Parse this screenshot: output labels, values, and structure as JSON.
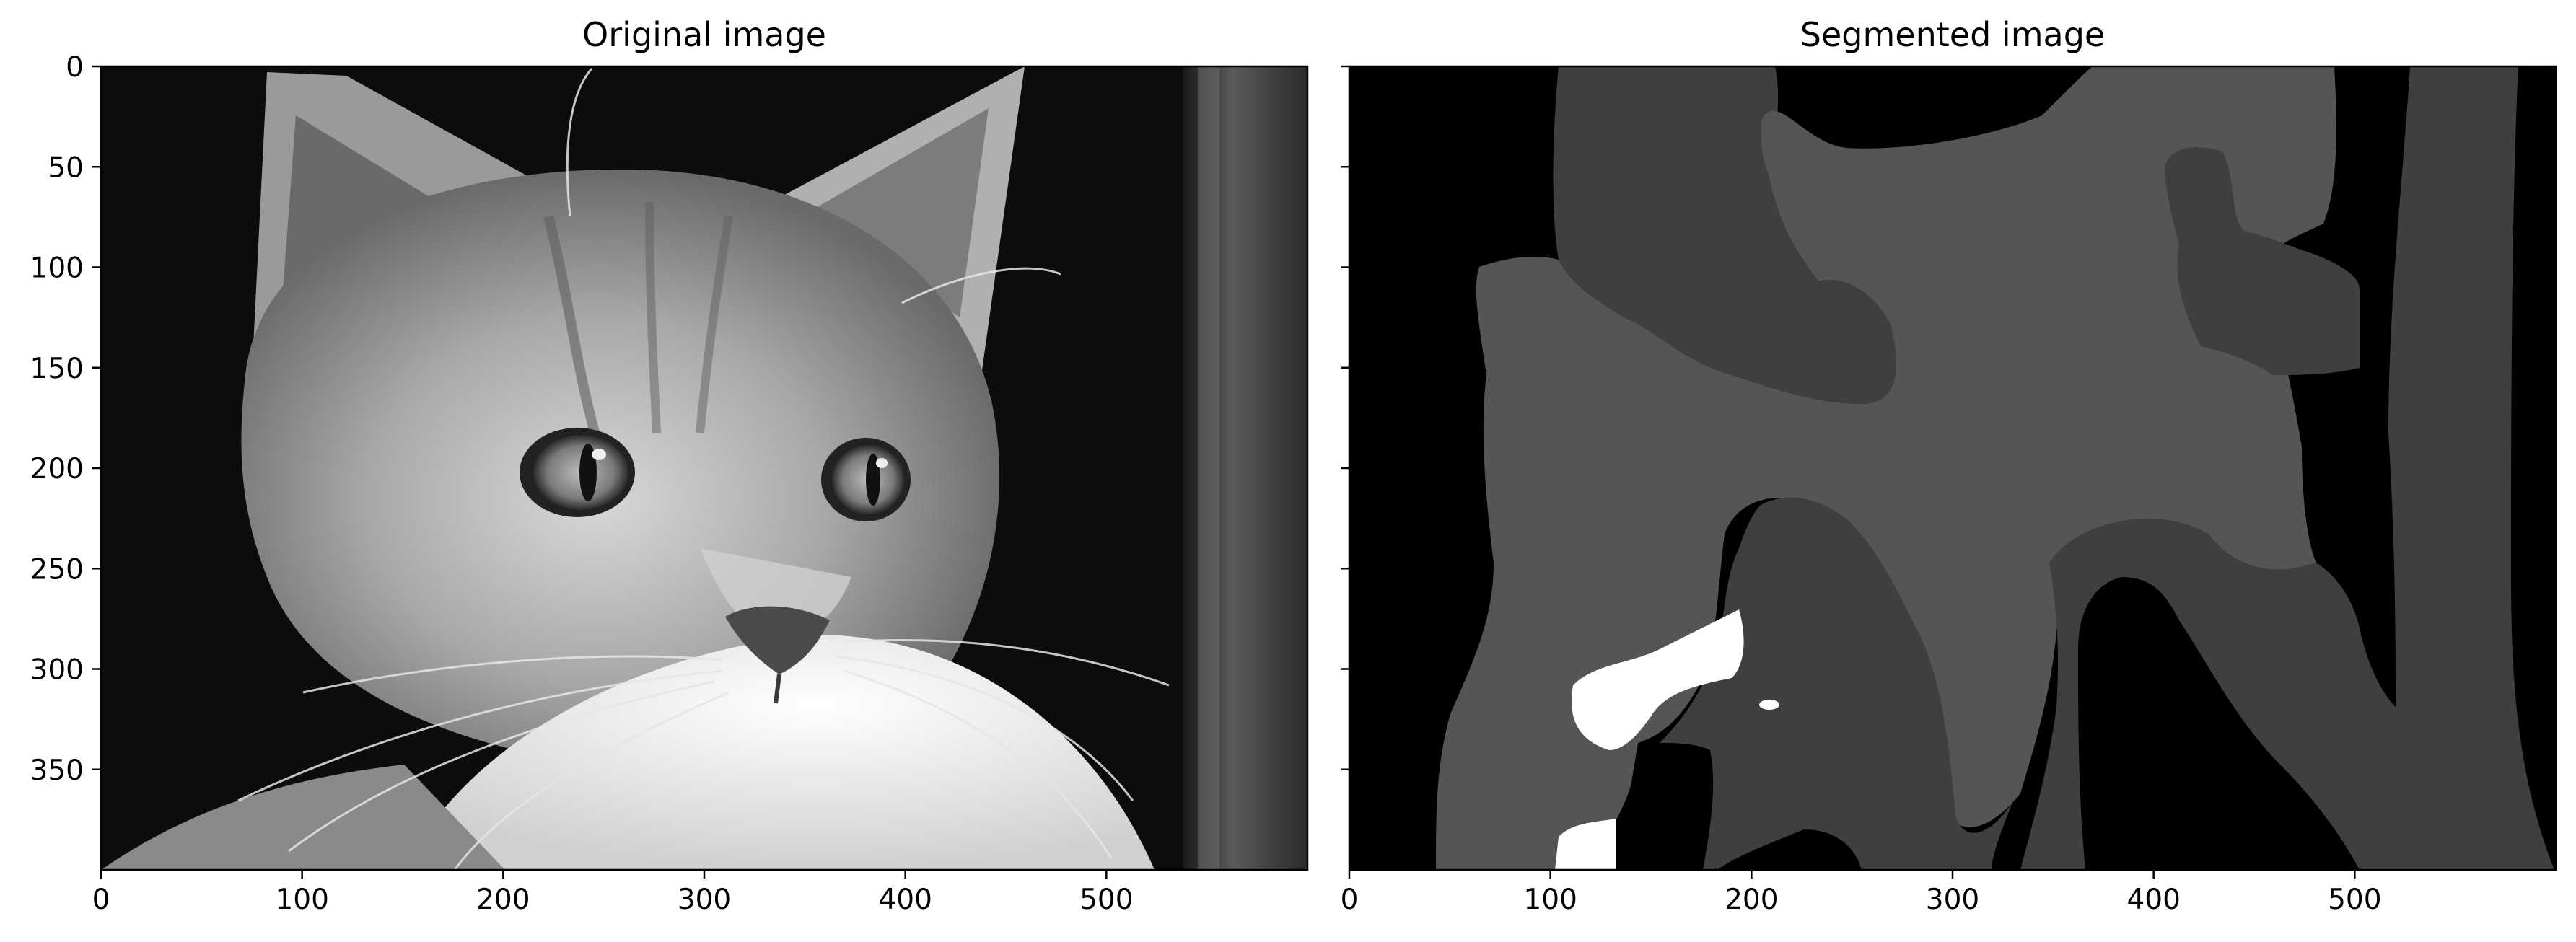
{
  "chart_data": [
    {
      "type": "image",
      "title": "Original image",
      "xlim": [
        0,
        600
      ],
      "ylim": [
        400,
        0
      ],
      "xticks": [
        0,
        100,
        200,
        300,
        400,
        500
      ],
      "yticks": [
        0,
        50,
        100,
        150,
        200,
        250,
        300,
        350
      ],
      "content": "grayscale photo of a kitten looking left"
    },
    {
      "type": "image",
      "title": "Segmented image",
      "xlim": [
        0,
        600
      ],
      "ylim": [
        400,
        0
      ],
      "xticks": [
        0,
        100,
        200,
        300,
        400,
        500
      ],
      "yticks": [
        0,
        50,
        100,
        150,
        200,
        250,
        300,
        350
      ],
      "ytick_labels_shown": false,
      "segment_levels": [
        "#000000",
        "#3f3f3f",
        "#555555",
        "#ffffff"
      ]
    }
  ]
}
